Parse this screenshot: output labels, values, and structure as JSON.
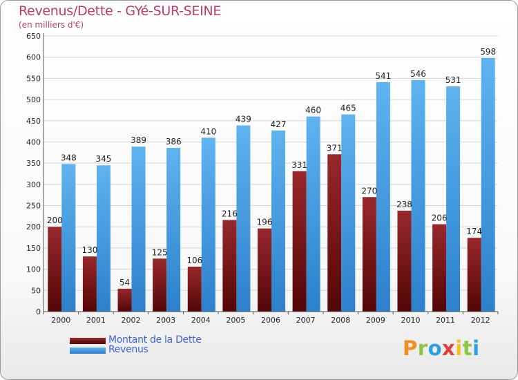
{
  "header": {
    "title": "Revenus/Dette - GYé-SUR-SEINE",
    "subtitle": "(en milliers d'€)"
  },
  "legend": {
    "items": [
      {
        "label": "Montant de la Dette",
        "color": "#7a1515"
      },
      {
        "label": "Revenus",
        "color": "#3f9be6"
      }
    ]
  },
  "logo": {
    "letters": [
      {
        "ch": "P",
        "color": "#f28c1e"
      },
      {
        "ch": "r",
        "color": "#8cc63f"
      },
      {
        "ch": "o",
        "color": "#2f9ee0"
      },
      {
        "ch": "x",
        "color": "#e53a3a"
      },
      {
        "ch": "i",
        "color": "#f2c21e"
      },
      {
        "ch": "t",
        "color": "#8cc63f"
      },
      {
        "ch": "i",
        "color": "#2f9ee0"
      }
    ]
  },
  "chart_data": {
    "type": "bar",
    "title": "Revenus/Dette - GYé-SUR-SEINE",
    "subtitle": "(en milliers d'€)",
    "categories": [
      "2000",
      "2001",
      "2002",
      "2003",
      "2004",
      "2005",
      "2006",
      "2007",
      "2008",
      "2009",
      "2010",
      "2011",
      "2012"
    ],
    "series": [
      {
        "name": "Montant de la Dette",
        "color": "#7a1515",
        "values": [
          200,
          130,
          54,
          125,
          106,
          216,
          196,
          331,
          371,
          270,
          238,
          206,
          174
        ]
      },
      {
        "name": "Revenus",
        "color": "#3f9be6",
        "values": [
          348,
          345,
          389,
          386,
          410,
          439,
          427,
          460,
          465,
          541,
          546,
          531,
          598
        ]
      }
    ],
    "ylim": [
      0,
      650
    ],
    "yticks": [
      0,
      50,
      100,
      150,
      200,
      250,
      300,
      350,
      400,
      450,
      500,
      550,
      600,
      650
    ],
    "grid": true,
    "legend_position": "bottom-left"
  }
}
